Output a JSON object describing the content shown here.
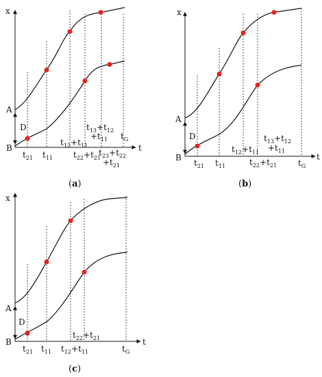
{
  "axis": {
    "x_label": "x",
    "t_label": "t"
  },
  "labels": {
    "A": "A",
    "B": "B",
    "D": "D",
    "t21": {
      "base": "t",
      "sub": "21"
    },
    "t11": {
      "base": "t",
      "sub": "11"
    },
    "tG": {
      "base": "t",
      "sub": "G"
    },
    "t12_t11": [
      {
        "base": "t",
        "sub": "12"
      },
      {
        "base": "+t",
        "sub": "11"
      }
    ],
    "t22_t21": [
      {
        "base": "t",
        "sub": "22"
      },
      {
        "base": "+t",
        "sub": "21"
      }
    ],
    "t13_t12": [
      {
        "base": "t",
        "sub": "13"
      },
      {
        "base": "+t",
        "sub": "12"
      }
    ],
    "plus_t11": [
      {
        "base": "+t",
        "sub": "11"
      }
    ],
    "t23_t22": [
      {
        "base": "t",
        "sub": "23"
      },
      {
        "base": "+t",
        "sub": "22"
      }
    ],
    "plus_t21": [
      {
        "base": "+t",
        "sub": "21"
      }
    ]
  },
  "panels": {
    "a": {
      "caption_open": "(",
      "caption_letter": "a",
      "caption_close": ")"
    },
    "b": {
      "caption_open": "(",
      "caption_letter": "b",
      "caption_close": ")"
    },
    "c": {
      "caption_open": "(",
      "caption_letter": "c",
      "caption_close": ")"
    }
  },
  "colors": {
    "point": "#e8231f",
    "line": "#111111"
  }
}
